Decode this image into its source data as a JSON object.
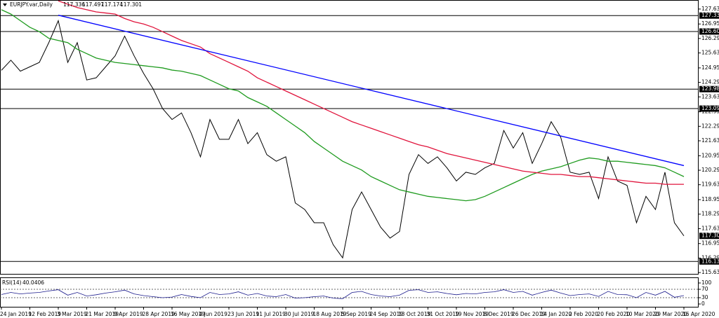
{
  "chart_data": {
    "type": "line",
    "header": {
      "symbol": "EURJPY.var,Daily",
      "open": 117.336,
      "high": 117.497,
      "low": 117.174,
      "close": 117.301
    },
    "categories": [
      "24 Jan 2019",
      null,
      null,
      "12 Feb 2019",
      null,
      null,
      "3 Mar 2019",
      null,
      null,
      "21 Mar 2019",
      null,
      null,
      "9 Apr 2019",
      null,
      null,
      "28 Apr 2019",
      null,
      null,
      "16 May 2019",
      null,
      null,
      "4 Jun 2019",
      null,
      null,
      "23 Jun 2019",
      null,
      null,
      "11 Jul 2019",
      null,
      null,
      "30 Jul 2019",
      null,
      null,
      "18 Aug 2019",
      null,
      null,
      "5 Sep 2019",
      null,
      null,
      "24 Sep 2019",
      null,
      null,
      "13 Oct 2019",
      null,
      null,
      "31 Oct 2019",
      null,
      null,
      "19 Nov 2019",
      null,
      null,
      "8 Dec 2019",
      null,
      null,
      "26 Dec 2019",
      null,
      null,
      "14 Jan 2020",
      null,
      null,
      "2 Feb 2020",
      null,
      null,
      "20 Feb 2020",
      null,
      null,
      "10 Mar 2020",
      null,
      null,
      "29 Mar 2020",
      null,
      null,
      "16 Apr 2020"
    ],
    "series": [
      {
        "color": "#000000",
        "values": [
          124.84,
          125.3,
          124.8,
          125.0,
          125.2,
          126.1,
          127.1,
          125.2,
          126.1,
          124.4,
          124.5,
          125.0,
          125.5,
          126.4,
          125.5,
          124.7,
          124.0,
          123.1,
          122.6,
          122.9,
          122.0,
          120.9,
          122.6,
          121.7,
          121.7,
          122.6,
          121.5,
          122.0,
          121.0,
          120.7,
          120.9,
          118.8,
          118.5,
          117.9,
          117.9,
          116.9,
          116.3,
          118.5,
          119.3,
          118.5,
          117.7,
          117.2,
          117.5,
          120.1,
          121.0,
          120.6,
          120.9,
          120.4,
          119.8,
          120.2,
          120.1,
          120.4,
          120.6,
          122.1,
          121.3,
          122.0,
          120.6,
          121.5,
          122.5,
          121.8,
          120.2,
          120.1,
          120.2,
          119.0,
          120.9,
          119.8,
          119.6,
          117.9,
          119.1,
          118.5,
          120.2,
          117.9,
          117.3
        ]
      },
      {
        "color": "#1f9b1f",
        "values": [
          127.6,
          127.4,
          127.1,
          126.8,
          126.6,
          126.3,
          126.2,
          126.1,
          125.8,
          125.6,
          125.4,
          125.3,
          125.2,
          125.15,
          125.1,
          125.05,
          125.0,
          124.95,
          124.85,
          124.8,
          124.7,
          124.6,
          124.4,
          124.2,
          124.0,
          123.9,
          123.6,
          123.4,
          123.2,
          122.9,
          122.6,
          122.3,
          122.0,
          121.6,
          121.3,
          121.0,
          120.7,
          120.5,
          120.3,
          120.0,
          119.8,
          119.6,
          119.4,
          119.3,
          119.2,
          119.1,
          119.05,
          119.0,
          118.95,
          118.9,
          118.95,
          119.1,
          119.3,
          119.5,
          119.7,
          119.9,
          120.1,
          120.25,
          120.35,
          120.45,
          120.6,
          120.75,
          120.85,
          120.8,
          120.7,
          120.7,
          120.65,
          120.6,
          120.55,
          120.5,
          120.4,
          120.2,
          120.0
        ]
      },
      {
        "color": "#e0143c",
        "values": [
          null,
          null,
          null,
          null,
          null,
          null,
          128.0,
          127.85,
          127.7,
          127.6,
          127.5,
          127.45,
          127.4,
          127.2,
          127.05,
          126.95,
          126.8,
          126.6,
          126.4,
          126.2,
          126.05,
          125.9,
          125.6,
          125.4,
          125.2,
          125.0,
          124.8,
          124.5,
          124.3,
          124.1,
          123.9,
          123.7,
          123.5,
          123.3,
          123.1,
          122.9,
          122.7,
          122.5,
          122.35,
          122.2,
          122.05,
          121.9,
          121.75,
          121.6,
          121.45,
          121.35,
          121.2,
          121.05,
          120.95,
          120.85,
          120.75,
          120.65,
          120.55,
          120.45,
          120.35,
          120.25,
          120.2,
          120.15,
          120.1,
          120.1,
          120.05,
          120.0,
          120.0,
          119.95,
          119.9,
          119.85,
          119.8,
          119.75,
          119.7,
          119.7,
          119.65,
          119.65,
          119.65
        ]
      }
    ],
    "trendline": {
      "color": "#0000ff",
      "x": [
        6,
        72
      ],
      "values": [
        127.35,
        120.5
      ]
    },
    "levels": [
      127.333,
      126.607,
      123.984,
      123.096,
      116.135
    ],
    "ylim": [
      115.57,
      128.01
    ],
    "yticks": [
      {
        "value": 127.63,
        "label": "127.630"
      },
      {
        "value": 126.95,
        "label": "126.950"
      },
      {
        "value": 126.29,
        "label": "126.290"
      },
      {
        "value": 125.63,
        "label": "125.630"
      },
      {
        "value": 124.95,
        "label": "124.950"
      },
      {
        "value": 124.29,
        "label": "124.290"
      },
      {
        "value": 123.63,
        "label": "123.630"
      },
      {
        "value": 122.95,
        "label": "122.950"
      },
      {
        "value": 122.29,
        "label": "122.290"
      },
      {
        "value": 121.63,
        "label": "121.630"
      },
      {
        "value": 120.95,
        "label": "120.950"
      },
      {
        "value": 120.29,
        "label": "120.290"
      },
      {
        "value": 119.63,
        "label": "119.630"
      },
      {
        "value": 118.95,
        "label": "118.950"
      },
      {
        "value": 118.29,
        "label": "118.290"
      },
      {
        "value": 117.63,
        "label": "117.630"
      },
      {
        "value": 116.95,
        "label": "116.950"
      },
      {
        "value": 116.29,
        "label": "116.290"
      },
      {
        "value": 115.63,
        "label": "115.630"
      }
    ],
    "rsi": {
      "name": "RSI(14)",
      "value": 40.0406,
      "color": "#1a1a8c",
      "ylim": [
        0,
        100
      ],
      "yticks": [
        100,
        70,
        30,
        0
      ],
      "values": [
        45,
        55,
        48,
        52,
        55,
        62,
        68,
        42,
        55,
        38,
        44,
        52,
        58,
        66,
        48,
        40,
        35,
        30,
        33,
        45,
        36,
        30,
        55,
        45,
        48,
        58,
        42,
        50,
        38,
        35,
        45,
        28,
        30,
        35,
        38,
        28,
        25,
        55,
        60,
        45,
        38,
        35,
        42,
        65,
        68,
        55,
        58,
        50,
        44,
        50,
        48,
        55,
        58,
        68,
        55,
        60,
        42,
        55,
        66,
        52,
        40,
        45,
        48,
        36,
        60,
        45,
        44,
        30,
        55,
        42,
        60,
        32,
        40
      ]
    }
  }
}
